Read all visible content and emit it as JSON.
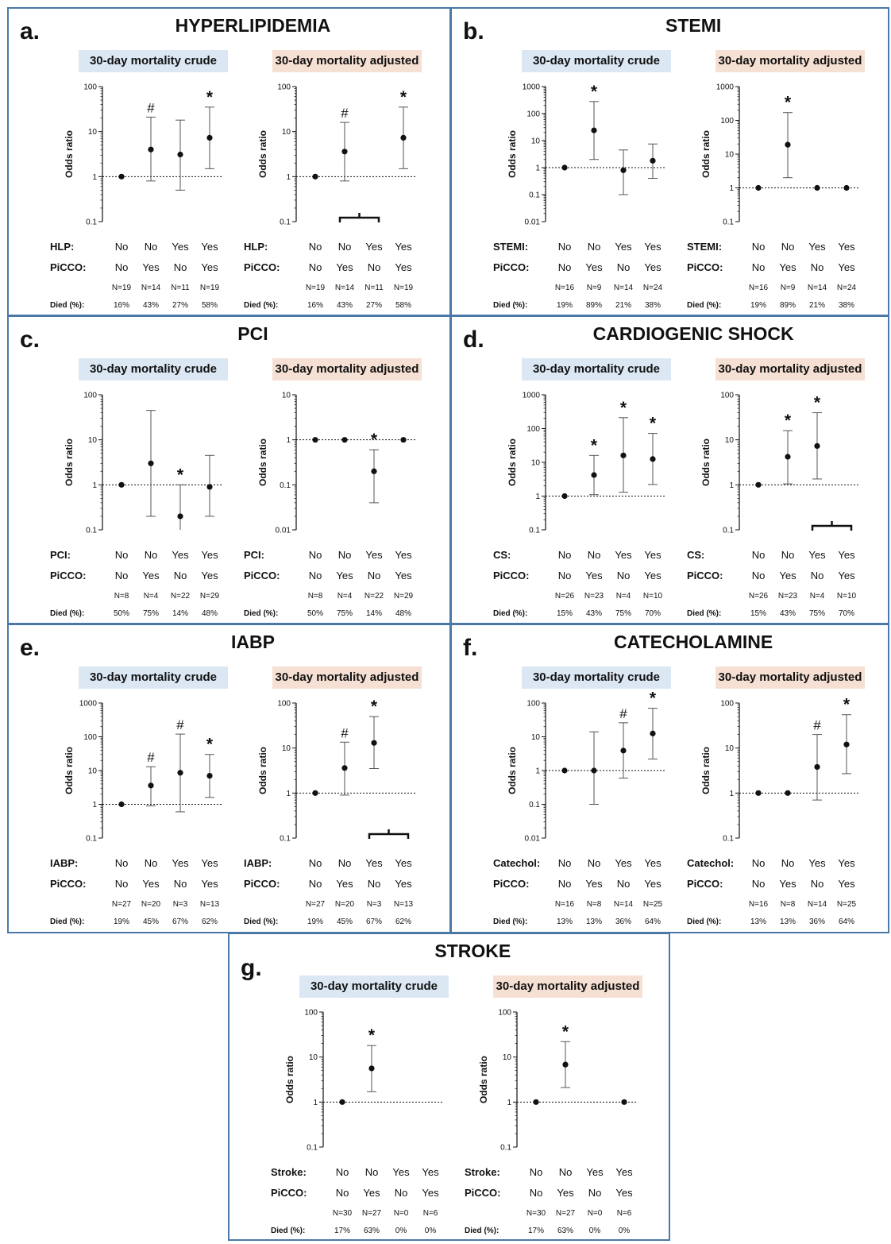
{
  "subtitle_crude": "30-day mortality crude",
  "subtitle_adjusted": "30-day mortality adjusted",
  "ylabel": "Odds ratio",
  "row_picco": "PiCCO:",
  "row_died": "Died (%):",
  "panels": [
    {
      "letter": "a.",
      "title": "HYPERLIPIDEMIA",
      "factor_label": "HLP:",
      "factor": [
        "No",
        "No",
        "Yes",
        "Yes"
      ],
      "picco": [
        "No",
        "Yes",
        "No",
        "Yes"
      ],
      "n": [
        "N=19",
        "N=14",
        "N=11",
        "N=19"
      ],
      "died": [
        "16%",
        "43%",
        "27%",
        "58%"
      ]
    },
    {
      "letter": "b.",
      "title": "STEMI",
      "factor_label": "STEMI:",
      "factor": [
        "No",
        "No",
        "Yes",
        "Yes"
      ],
      "picco": [
        "No",
        "Yes",
        "No",
        "Yes"
      ],
      "n": [
        "N=16",
        "N=9",
        "N=14",
        "N=24"
      ],
      "died": [
        "19%",
        "89%",
        "21%",
        "38%"
      ]
    },
    {
      "letter": "c.",
      "title": "PCI",
      "factor_label": "PCI:",
      "factor": [
        "No",
        "No",
        "Yes",
        "Yes"
      ],
      "picco": [
        "No",
        "Yes",
        "No",
        "Yes"
      ],
      "n": [
        "N=8",
        "N=4",
        "N=22",
        "N=29"
      ],
      "died": [
        "50%",
        "75%",
        "14%",
        "48%"
      ]
    },
    {
      "letter": "d.",
      "title": "CARDIOGENIC SHOCK",
      "factor_label": "CS:",
      "factor": [
        "No",
        "No",
        "Yes",
        "Yes"
      ],
      "picco": [
        "No",
        "Yes",
        "No",
        "Yes"
      ],
      "n": [
        "N=26",
        "N=23",
        "N=4",
        "N=10"
      ],
      "died": [
        "15%",
        "43%",
        "75%",
        "70%"
      ]
    },
    {
      "letter": "e.",
      "title": "IABP",
      "factor_label": "IABP:",
      "factor": [
        "No",
        "No",
        "Yes",
        "Yes"
      ],
      "picco": [
        "No",
        "Yes",
        "No",
        "Yes"
      ],
      "n": [
        "N=27",
        "N=20",
        "N=3",
        "N=13"
      ],
      "died": [
        "19%",
        "45%",
        "67%",
        "62%"
      ]
    },
    {
      "letter": "f.",
      "title": "CATECHOLAMINE",
      "factor_label": "Catechol:",
      "factor": [
        "No",
        "No",
        "Yes",
        "Yes"
      ],
      "picco": [
        "No",
        "Yes",
        "No",
        "Yes"
      ],
      "n": [
        "N=16",
        "N=8",
        "N=14",
        "N=25"
      ],
      "died": [
        "13%",
        "13%",
        "36%",
        "64%"
      ]
    },
    {
      "letter": "g.",
      "title": "STROKE",
      "factor_label": "Stroke:",
      "factor": [
        "No",
        "No",
        "Yes",
        "Yes"
      ],
      "picco": [
        "No",
        "Yes",
        "No",
        "Yes"
      ],
      "n": [
        "N=30",
        "N=27",
        "N=0",
        "N=6"
      ],
      "died": [
        "17%",
        "63%",
        "0%",
        "0%"
      ]
    }
  ],
  "chart_data": [
    {
      "panel": "a",
      "type": "scatter",
      "subtitle": "30-day mortality crude",
      "scale": "log",
      "ylim": [
        0.1,
        100
      ],
      "yticks": [
        "0.1",
        "1",
        "10",
        "100"
      ],
      "reference_line": 1,
      "points": [
        {
          "or": 1,
          "lo": null,
          "hi": null,
          "mark": ""
        },
        {
          "or": 4,
          "lo": 0.8,
          "hi": 21,
          "mark": "#"
        },
        {
          "or": 3.1,
          "lo": 0.5,
          "hi": 18,
          "mark": ""
        },
        {
          "or": 7.3,
          "lo": 1.5,
          "hi": 35,
          "mark": "*"
        }
      ]
    },
    {
      "panel": "a",
      "type": "scatter",
      "subtitle": "30-day mortality adjusted",
      "scale": "log",
      "ylim": [
        0.1,
        100
      ],
      "yticks": [
        "0.1",
        "1",
        "10",
        "100"
      ],
      "reference_line": 1,
      "bracket": [
        1,
        2
      ],
      "points": [
        {
          "or": 1,
          "lo": null,
          "hi": null,
          "mark": ""
        },
        {
          "or": 3.6,
          "lo": 0.8,
          "hi": 16,
          "mark": "#"
        },
        null,
        {
          "or": 7.3,
          "lo": 1.5,
          "hi": 35,
          "mark": "*"
        }
      ]
    },
    {
      "panel": "b",
      "type": "scatter",
      "subtitle": "30-day mortality crude",
      "scale": "log",
      "ylim": [
        0.01,
        1000
      ],
      "yticks": [
        "0.01",
        "0.1",
        "1",
        "10",
        "100",
        "1000"
      ],
      "reference_line": 1,
      "points": [
        {
          "or": 1,
          "lo": null,
          "hi": null,
          "mark": ""
        },
        {
          "or": 24,
          "lo": 2,
          "hi": 280,
          "mark": "*"
        },
        {
          "or": 0.8,
          "lo": 0.1,
          "hi": 4.5,
          "mark": ""
        },
        {
          "or": 1.8,
          "lo": 0.4,
          "hi": 7.5,
          "mark": ""
        }
      ]
    },
    {
      "panel": "b",
      "type": "scatter",
      "subtitle": "30-day mortality adjusted",
      "scale": "log",
      "ylim": [
        0.1,
        1000
      ],
      "yticks": [
        "0.1",
        "1",
        "10",
        "100",
        "1000"
      ],
      "reference_line": 1,
      "points": [
        {
          "or": 1,
          "lo": null,
          "hi": null,
          "mark": ""
        },
        {
          "or": 19,
          "lo": 2,
          "hi": 170,
          "mark": "*"
        },
        {
          "or": 1,
          "lo": null,
          "hi": null,
          "mark": ""
        },
        {
          "or": 1,
          "lo": null,
          "hi": null,
          "mark": ""
        }
      ]
    },
    {
      "panel": "c",
      "type": "scatter",
      "subtitle": "30-day mortality crude",
      "scale": "log",
      "ylim": [
        0.1,
        100
      ],
      "yticks": [
        "0.1",
        "1",
        "10",
        "100"
      ],
      "reference_line": 1,
      "points": [
        {
          "or": 1,
          "lo": null,
          "hi": null,
          "mark": ""
        },
        {
          "or": 3,
          "lo": 0.2,
          "hi": 45,
          "mark": ""
        },
        {
          "or": 0.2,
          "lo": null,
          "hi": 1,
          "mark": "*"
        },
        {
          "or": 0.9,
          "lo": 0.2,
          "hi": 4.5,
          "mark": ""
        }
      ]
    },
    {
      "panel": "c",
      "type": "scatter",
      "subtitle": "30-day mortality adjusted",
      "scale": "log",
      "ylim": [
        0.01,
        10
      ],
      "yticks": [
        "0.01",
        "0.1",
        "1",
        "10"
      ],
      "reference_line": 1,
      "points": [
        {
          "or": 1,
          "lo": null,
          "hi": null,
          "mark": ""
        },
        {
          "or": 1,
          "lo": null,
          "hi": null,
          "mark": ""
        },
        {
          "or": 0.2,
          "lo": 0.04,
          "hi": 0.6,
          "mark": "*"
        },
        {
          "or": 1,
          "lo": null,
          "hi": null,
          "mark": ""
        }
      ]
    },
    {
      "panel": "d",
      "type": "scatter",
      "subtitle": "30-day mortality crude",
      "scale": "log",
      "ylim": [
        0.1,
        1000
      ],
      "yticks": [
        "0.1",
        "1",
        "10",
        "100",
        "1000"
      ],
      "reference_line": 1,
      "points": [
        {
          "or": 1,
          "lo": null,
          "hi": null,
          "mark": ""
        },
        {
          "or": 4.2,
          "lo": 1.1,
          "hi": 16,
          "mark": "*"
        },
        {
          "or": 16,
          "lo": 1.3,
          "hi": 210,
          "mark": "*"
        },
        {
          "or": 12.5,
          "lo": 2.2,
          "hi": 72,
          "mark": "*"
        }
      ]
    },
    {
      "panel": "d",
      "type": "scatter",
      "subtitle": "30-day mortality adjusted",
      "scale": "log",
      "ylim": [
        0.1,
        100
      ],
      "yticks": [
        "0.1",
        "1",
        "10",
        "100"
      ],
      "reference_line": 1,
      "bracket": [
        2,
        3
      ],
      "points": [
        {
          "or": 1,
          "lo": null,
          "hi": null,
          "mark": ""
        },
        {
          "or": 4.2,
          "lo": 1.05,
          "hi": 16,
          "mark": "*"
        },
        {
          "or": 7.3,
          "lo": 1.35,
          "hi": 40,
          "mark": "*"
        },
        null
      ]
    },
    {
      "panel": "e",
      "type": "scatter",
      "subtitle": "30-day mortality crude",
      "scale": "log",
      "ylim": [
        0.1,
        1000
      ],
      "yticks": [
        "0.1",
        "1",
        "10",
        "100",
        "1000"
      ],
      "reference_line": 1,
      "points": [
        {
          "or": 1,
          "lo": null,
          "hi": null,
          "mark": ""
        },
        {
          "or": 3.6,
          "lo": 0.9,
          "hi": 13,
          "mark": "#"
        },
        {
          "or": 8.6,
          "lo": 0.6,
          "hi": 120,
          "mark": "#"
        },
        {
          "or": 7,
          "lo": 1.6,
          "hi": 30,
          "mark": "*"
        }
      ]
    },
    {
      "panel": "e",
      "type": "scatter",
      "subtitle": "30-day mortality adjusted",
      "scale": "log",
      "ylim": [
        0.1,
        100
      ],
      "yticks": [
        "0.1",
        "1",
        "10",
        "100"
      ],
      "reference_line": 1,
      "bracket": [
        2,
        3
      ],
      "points": [
        {
          "or": 1,
          "lo": null,
          "hi": null,
          "mark": ""
        },
        {
          "or": 3.6,
          "lo": 0.9,
          "hi": 13.5,
          "mark": "#"
        },
        {
          "or": 13,
          "lo": 3.5,
          "hi": 50,
          "mark": "*"
        },
        null
      ]
    },
    {
      "panel": "f",
      "type": "scatter",
      "subtitle": "30-day mortality crude",
      "scale": "log",
      "ylim": [
        0.01,
        100
      ],
      "yticks": [
        "0.01",
        "0.1",
        "1",
        "10",
        "100"
      ],
      "reference_line": 1,
      "points": [
        {
          "or": 1,
          "lo": null,
          "hi": null,
          "mark": ""
        },
        {
          "or": 1,
          "lo": 0.1,
          "hi": 14,
          "mark": ""
        },
        {
          "or": 3.9,
          "lo": 0.6,
          "hi": 26,
          "mark": "#"
        },
        {
          "or": 12.5,
          "lo": 2.2,
          "hi": 70,
          "mark": "*"
        }
      ]
    },
    {
      "panel": "f",
      "type": "scatter",
      "subtitle": "30-day mortality adjusted",
      "scale": "log",
      "ylim": [
        0.1,
        100
      ],
      "yticks": [
        "0.1",
        "1",
        "10",
        "100"
      ],
      "reference_line": 1,
      "points": [
        {
          "or": 1,
          "lo": null,
          "hi": null,
          "mark": ""
        },
        {
          "or": 1,
          "lo": null,
          "hi": null,
          "mark": ""
        },
        {
          "or": 3.8,
          "lo": 0.7,
          "hi": 20,
          "mark": "#"
        },
        {
          "or": 12,
          "lo": 2.7,
          "hi": 55,
          "mark": "*"
        }
      ]
    },
    {
      "panel": "g",
      "type": "scatter",
      "subtitle": "30-day mortality crude",
      "scale": "log",
      "ylim": [
        0.1,
        100
      ],
      "yticks": [
        "0.1",
        "1",
        "10",
        "100"
      ],
      "reference_line": 1,
      "points": [
        {
          "or": 1,
          "lo": null,
          "hi": null,
          "mark": ""
        },
        {
          "or": 5.6,
          "lo": 1.7,
          "hi": 18,
          "mark": "*"
        },
        null,
        null
      ]
    },
    {
      "panel": "g",
      "type": "scatter",
      "subtitle": "30-day mortality adjusted",
      "scale": "log",
      "ylim": [
        0.1,
        100
      ],
      "yticks": [
        "0.1",
        "1",
        "10",
        "100"
      ],
      "reference_line": 1,
      "points": [
        {
          "or": 1,
          "lo": null,
          "hi": null,
          "mark": ""
        },
        {
          "or": 6.8,
          "lo": 2.1,
          "hi": 22,
          "mark": "*"
        },
        null,
        {
          "or": 1,
          "lo": null,
          "hi": null,
          "mark": ""
        }
      ]
    }
  ]
}
